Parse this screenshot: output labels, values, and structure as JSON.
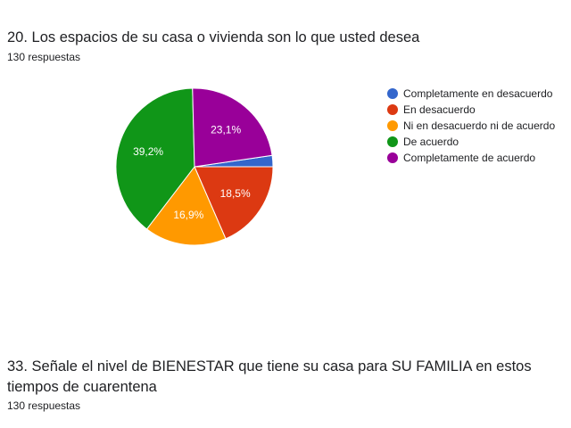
{
  "questions": [
    {
      "title": "20. Los espacios de su casa o vivienda son lo que usted desea",
      "responses": "130 respuestas"
    },
    {
      "title": "33. Señale el nivel de BIENESTAR que tiene su casa para SU FAMILIA en estos tiempos de cuarentena",
      "responses": "130 respuestas"
    }
  ],
  "chart_data": {
    "type": "pie",
    "title": "20. Los espacios de su casa o vivienda son lo que usted desea",
    "legend_position": "right",
    "slices": [
      {
        "label": "Completamente en desacuerdo",
        "value": 2.3,
        "data_label": "",
        "color": "#3366cc"
      },
      {
        "label": "En desacuerdo",
        "value": 18.5,
        "data_label": "18,5%",
        "color": "#dc3912"
      },
      {
        "label": "Ni en desacuerdo ni de acuerdo",
        "value": 16.9,
        "data_label": "16,9%",
        "color": "#ff9900"
      },
      {
        "label": "De acuerdo",
        "value": 39.2,
        "data_label": "39,2%",
        "color": "#109618"
      },
      {
        "label": "Completamente de acuerdo",
        "value": 23.1,
        "data_label": "23,1%",
        "color": "#990099"
      }
    ]
  }
}
